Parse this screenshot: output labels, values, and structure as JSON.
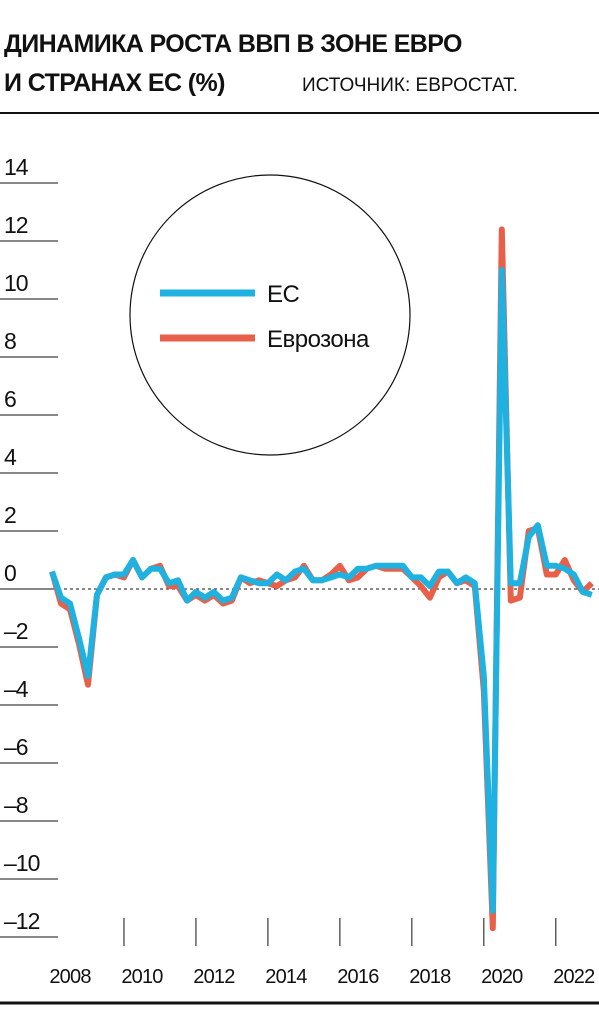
{
  "chart_data": {
    "type": "line",
    "title": [
      "ДИНАМИКА РОСТА ВВП В ЗОНЕ ЕВРО",
      "И СТРАНАХ ЕС (%)"
    ],
    "subtitle": "ИСТОЧНИК: ЕВРОСТАТ.",
    "x": [
      2008,
      2008.25,
      2008.5,
      2008.75,
      2009,
      2009.25,
      2009.5,
      2009.75,
      2010,
      2010.25,
      2010.5,
      2010.75,
      2011,
      2011.25,
      2011.5,
      2011.75,
      2012,
      2012.25,
      2012.5,
      2012.75,
      2013,
      2013.25,
      2013.5,
      2013.75,
      2014,
      2014.25,
      2014.5,
      2014.75,
      2015,
      2015.25,
      2015.5,
      2015.75,
      2016,
      2016.25,
      2016.5,
      2016.75,
      2017,
      2017.25,
      2017.5,
      2017.75,
      2018,
      2018.25,
      2018.5,
      2018.75,
      2019,
      2019.25,
      2019.5,
      2019.75,
      2020,
      2020.25,
      2020.5,
      2020.75,
      2021,
      2021.25,
      2021.5,
      2021.75,
      2022,
      2022.25,
      2022.5,
      2022.75,
      2023
    ],
    "series": [
      {
        "name": "ЕС",
        "color": "#1fb1e0",
        "values": [
          0.6,
          -0.3,
          -0.5,
          -1.7,
          -3.0,
          -0.2,
          0.4,
          0.5,
          0.5,
          1.0,
          0.4,
          0.7,
          0.7,
          0.2,
          0.3,
          -0.4,
          -0.1,
          -0.3,
          -0.1,
          -0.4,
          -0.3,
          0.4,
          0.3,
          0.2,
          0.2,
          0.5,
          0.3,
          0.6,
          0.7,
          0.3,
          0.3,
          0.4,
          0.5,
          0.4,
          0.7,
          0.7,
          0.8,
          0.8,
          0.8,
          0.8,
          0.4,
          0.4,
          0.1,
          0.6,
          0.6,
          0.2,
          0.4,
          0.2,
          -3.0,
          -11.1,
          11.0,
          0.2,
          0.2,
          1.8,
          2.2,
          0.8,
          0.8,
          0.7,
          0.5,
          -0.1,
          -0.2
        ]
      },
      {
        "name": "Еврозона",
        "color": "#e8604a",
        "values": [
          0.6,
          -0.5,
          -0.7,
          -1.9,
          -3.3,
          -0.2,
          0.4,
          0.5,
          0.4,
          1.0,
          0.4,
          0.7,
          0.8,
          0.1,
          0.1,
          -0.4,
          -0.2,
          -0.4,
          -0.2,
          -0.5,
          -0.4,
          0.4,
          0.2,
          0.3,
          0.2,
          0.1,
          0.3,
          0.4,
          0.8,
          0.3,
          0.3,
          0.5,
          0.8,
          0.3,
          0.4,
          0.7,
          0.8,
          0.7,
          0.7,
          0.7,
          0.4,
          0.1,
          -0.3,
          0.4,
          0.6,
          0.2,
          0.3,
          0.1,
          -3.5,
          -11.7,
          12.4,
          -0.4,
          -0.3,
          2.0,
          2.1,
          0.5,
          0.5,
          1.0,
          0.3,
          -0.1,
          0.2
        ]
      }
    ],
    "xlim": [
      2008,
      2023.2
    ],
    "xticks": [
      2008,
      2010,
      2012,
      2014,
      2016,
      2018,
      2020,
      2022
    ],
    "ylim": [
      -12,
      14
    ],
    "yticks": [
      {
        "value": -12,
        "label": "–12"
      },
      {
        "value": -10,
        "label": "–10"
      },
      {
        "value": -8,
        "label": "–8"
      },
      {
        "value": -6,
        "label": "–6"
      },
      {
        "value": -4,
        "label": "–4"
      },
      {
        "value": -2,
        "label": "–2"
      },
      0,
      2,
      4,
      6,
      8,
      10,
      12,
      14
    ]
  }
}
